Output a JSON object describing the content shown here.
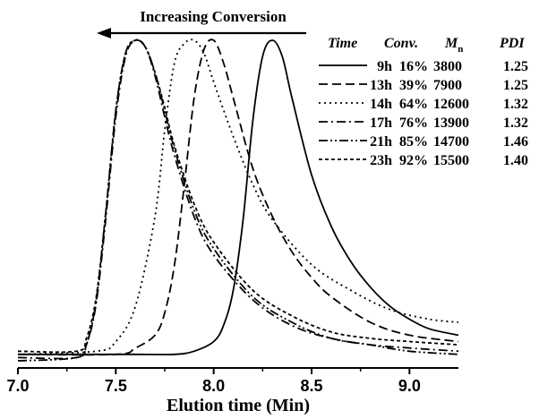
{
  "chart_data": {
    "type": "line",
    "xlabel": "Elution time (Min)",
    "ylabel": "",
    "xlim": [
      7.0,
      9.25
    ],
    "ylim": [
      0,
      1.0
    ],
    "x_ticks": [
      "7.0",
      "7.5",
      "8.0",
      "8.5",
      "9.0"
    ],
    "annotation": "Increasing Conversion",
    "legend_headers": {
      "time": "Time",
      "conv": "Conv.",
      "mn": "M",
      "mn_sub": "n",
      "pdi": "PDI"
    },
    "legend_rows": [
      {
        "time": "9h",
        "conv": "16%",
        "mn": "3800",
        "pdi": "1.25"
      },
      {
        "time": "13h",
        "conv": "39%",
        "mn": "7900",
        "pdi": "1.25"
      },
      {
        "time": "14h",
        "conv": "64%",
        "mn": "12600",
        "pdi": "1.32"
      },
      {
        "time": "17h",
        "conv": "76%",
        "mn": "13900",
        "pdi": "1.32"
      },
      {
        "time": "21h",
        "conv": "85%",
        "mn": "14700",
        "pdi": "1.46"
      },
      {
        "time": "23h",
        "conv": "92%",
        "mn": "15500",
        "pdi": "1.40"
      }
    ],
    "series": [
      {
        "name": "9h",
        "dash": "solid",
        "x": [
          7.0,
          7.6,
          7.8,
          7.9,
          8.0,
          8.05,
          8.1,
          8.15,
          8.2,
          8.25,
          8.3,
          8.35,
          8.4,
          8.5,
          8.6,
          8.7,
          8.8,
          8.9,
          9.0,
          9.1,
          9.25
        ],
        "y": [
          0.02,
          0.02,
          0.02,
          0.03,
          0.06,
          0.11,
          0.22,
          0.44,
          0.75,
          0.95,
          1.0,
          0.95,
          0.82,
          0.58,
          0.42,
          0.31,
          0.23,
          0.17,
          0.13,
          0.1,
          0.08
        ]
      },
      {
        "name": "13h",
        "dash": "dashed",
        "x": [
          7.0,
          7.5,
          7.6,
          7.7,
          7.75,
          7.8,
          7.85,
          7.9,
          7.95,
          8.0,
          8.05,
          8.1,
          8.2,
          8.3,
          8.4,
          8.5,
          8.6,
          8.8,
          9.0,
          9.25
        ],
        "y": [
          0.02,
          0.02,
          0.04,
          0.08,
          0.15,
          0.3,
          0.55,
          0.82,
          0.97,
          1.0,
          0.93,
          0.82,
          0.6,
          0.45,
          0.34,
          0.26,
          0.2,
          0.12,
          0.08,
          0.06
        ]
      },
      {
        "name": "14h",
        "dash": "dotted",
        "x": [
          7.0,
          7.4,
          7.5,
          7.6,
          7.7,
          7.75,
          7.8,
          7.85,
          7.9,
          7.95,
          8.0,
          8.1,
          8.2,
          8.3,
          8.5,
          8.7,
          8.9,
          9.1,
          9.25
        ],
        "y": [
          0.02,
          0.03,
          0.06,
          0.17,
          0.45,
          0.72,
          0.93,
          0.99,
          1.0,
          0.96,
          0.87,
          0.7,
          0.55,
          0.44,
          0.3,
          0.22,
          0.16,
          0.13,
          0.12
        ]
      },
      {
        "name": "17h",
        "dash": "dashdot",
        "x": [
          7.0,
          7.3,
          7.35,
          7.4,
          7.45,
          7.5,
          7.55,
          7.6,
          7.65,
          7.7,
          7.75,
          7.8,
          7.9,
          8.0,
          8.2,
          8.4,
          8.6,
          8.8,
          9.0,
          9.25
        ],
        "y": [
          0.01,
          0.01,
          0.05,
          0.18,
          0.45,
          0.76,
          0.95,
          1.0,
          0.98,
          0.89,
          0.76,
          0.64,
          0.45,
          0.33,
          0.19,
          0.11,
          0.07,
          0.05,
          0.04,
          0.03
        ]
      },
      {
        "name": "21h",
        "dash": "dashdotdot",
        "x": [
          7.0,
          7.3,
          7.35,
          7.4,
          7.45,
          7.5,
          7.55,
          7.6,
          7.65,
          7.7,
          7.75,
          7.8,
          7.9,
          8.0,
          8.2,
          8.4,
          8.6,
          8.8,
          9.0,
          9.25
        ],
        "y": [
          0.0,
          0.01,
          0.05,
          0.19,
          0.47,
          0.78,
          0.96,
          1.0,
          0.98,
          0.9,
          0.78,
          0.66,
          0.47,
          0.35,
          0.2,
          0.12,
          0.07,
          0.05,
          0.03,
          0.02
        ]
      },
      {
        "name": "23h",
        "dash": "shortdash",
        "x": [
          7.0,
          7.3,
          7.35,
          7.4,
          7.45,
          7.5,
          7.55,
          7.6,
          7.65,
          7.7,
          7.75,
          7.8,
          7.9,
          8.0,
          8.2,
          8.4,
          8.6,
          8.8,
          9.0,
          9.25
        ],
        "y": [
          0.03,
          0.03,
          0.07,
          0.2,
          0.47,
          0.78,
          0.96,
          1.0,
          0.98,
          0.9,
          0.79,
          0.67,
          0.49,
          0.37,
          0.22,
          0.14,
          0.09,
          0.07,
          0.06,
          0.05
        ]
      }
    ],
    "grid": false,
    "legend_position": "top-right"
  }
}
